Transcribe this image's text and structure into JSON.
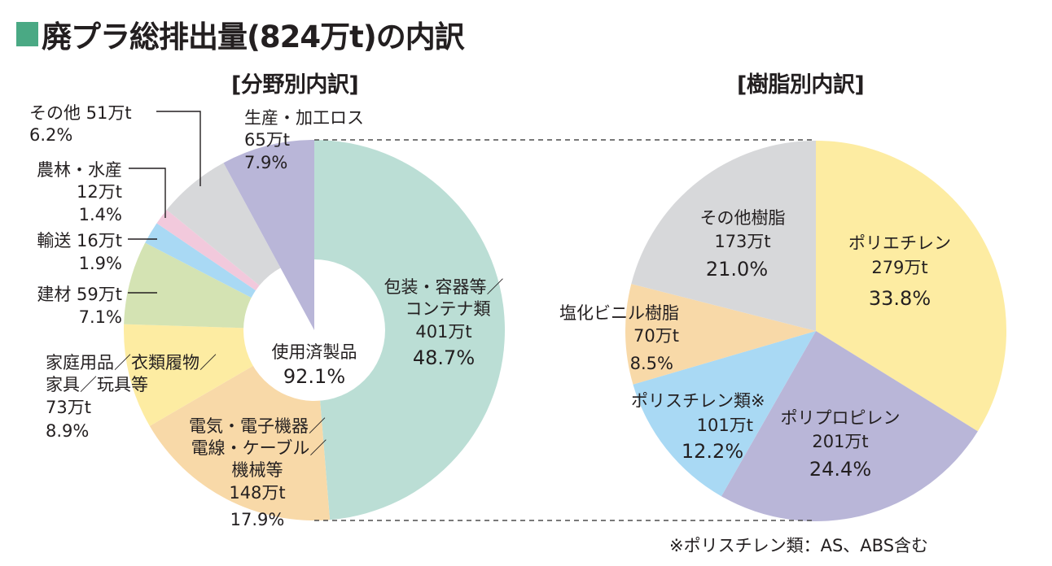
{
  "title": "廃プラ総排出量(824万t)の内訳",
  "title_marker_color": "#4aa984",
  "footnote": "※ポリスチレン類：AS、ABS含む",
  "chart_data": [
    {
      "type": "pie",
      "variant": "donut-with-full-wedge",
      "title": "[分野別内訳]",
      "center_label": "使用済製品",
      "center_value": "92.1%",
      "start": "top",
      "direction": "clockwise",
      "slices": [
        {
          "name": "包装・容器等／コンテナ類",
          "lines": [
            "包装・容器等／",
            "コンテナ類"
          ],
          "amount": "401万t",
          "amount_value": 401,
          "percent": 48.7,
          "percent_label": "48.7%",
          "color": "#bbded5",
          "group": "使用済製品"
        },
        {
          "name": "電気・電子機器／電線・ケーブル／機械等",
          "lines": [
            "電気・電子機器／",
            "電線・ケーブル／",
            "機械等"
          ],
          "amount": "148万t",
          "amount_value": 148,
          "percent": 17.9,
          "percent_label": "17.9%",
          "color": "#f8d9a8",
          "group": "使用済製品"
        },
        {
          "name": "家庭用品／衣類履物／家具／玩具等",
          "lines": [
            "家庭用品／衣類履物／",
            "家具／玩具等"
          ],
          "amount": "73万t",
          "amount_value": 73,
          "percent": 8.9,
          "percent_label": "8.9%",
          "color": "#fdeca2",
          "group": "使用済製品"
        },
        {
          "name": "建材",
          "lines": [
            "建材 59万t"
          ],
          "amount": "59万t",
          "amount_value": 59,
          "percent": 7.1,
          "percent_label": "7.1%",
          "color": "#d4e3b3",
          "group": "使用済製品"
        },
        {
          "name": "輸送",
          "lines": [
            "輸送 16万t"
          ],
          "amount": "16万t",
          "amount_value": 16,
          "percent": 1.9,
          "percent_label": "1.9%",
          "color": "#a9d9f4",
          "group": "使用済製品"
        },
        {
          "name": "農林・水産",
          "lines": [
            "農林・水産"
          ],
          "amount": "12万t",
          "amount_value": 12,
          "percent": 1.4,
          "percent_label": "1.4%",
          "color": "#f2c9dc",
          "group": "使用済製品"
        },
        {
          "name": "その他",
          "lines": [
            "その他 51万t"
          ],
          "amount": "51万t",
          "amount_value": 51,
          "percent": 6.2,
          "percent_label": "6.2%",
          "color": "#d7d8da",
          "group": "使用済製品"
        },
        {
          "name": "生産・加工ロス",
          "lines": [
            "生産・加工ロス"
          ],
          "amount": "65万t",
          "amount_value": 65,
          "percent": 7.9,
          "percent_label": "7.9%",
          "color": "#b9b6d8",
          "group": "生産・加工ロス"
        }
      ]
    },
    {
      "type": "pie",
      "title": "[樹脂別内訳]",
      "start": "top",
      "direction": "clockwise",
      "slices": [
        {
          "name": "ポリエチレン",
          "amount": "279万t",
          "amount_value": 279,
          "percent": 33.8,
          "percent_label": "33.8%",
          "color": "#fdeca2"
        },
        {
          "name": "ポリプロピレン",
          "amount": "201万t",
          "amount_value": 201,
          "percent": 24.4,
          "percent_label": "24.4%",
          "color": "#b9b6d8"
        },
        {
          "name": "ポリスチレン類※",
          "amount": "101万t",
          "amount_value": 101,
          "percent": 12.2,
          "percent_label": "12.2%",
          "color": "#a9d9f4"
        },
        {
          "name": "塩化ビニル樹脂",
          "amount": "70万t",
          "amount_value": 70,
          "percent": 8.5,
          "percent_label": "8.5%",
          "color": "#f8d9a8"
        },
        {
          "name": "その他樹脂",
          "amount": "173万t",
          "amount_value": 173,
          "percent": 21.0,
          "percent_label": "21.0%",
          "color": "#d7d8da"
        }
      ]
    }
  ]
}
